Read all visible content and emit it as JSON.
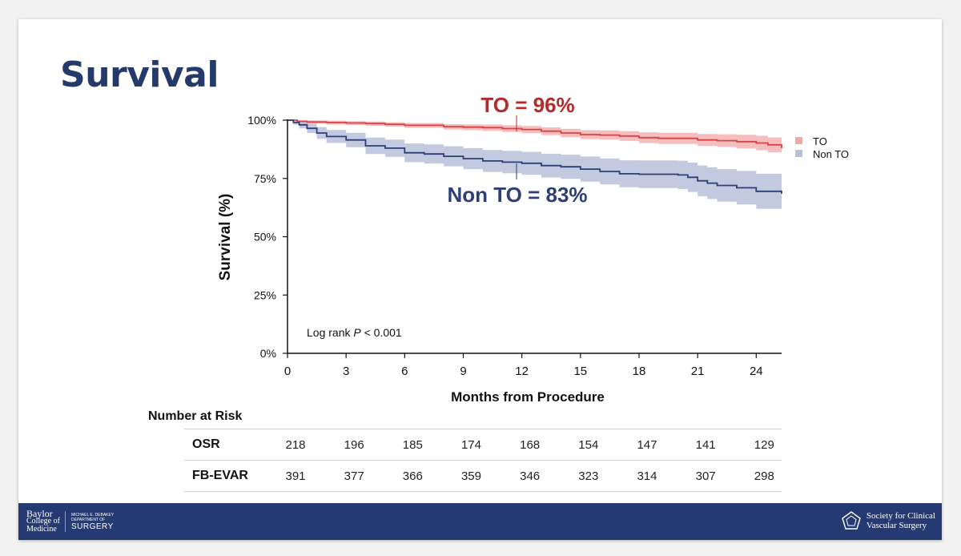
{
  "slide": {
    "title": "Survival"
  },
  "chart_data": {
    "type": "line",
    "title": "",
    "xlabel": "Months from Procedure",
    "ylabel": "Survival (%)",
    "xlim": [
      0,
      25.3
    ],
    "ylim": [
      0,
      100
    ],
    "x_ticks": [
      0,
      3,
      6,
      9,
      12,
      15,
      18,
      21,
      24
    ],
    "y_ticks": [
      0,
      25,
      50,
      75,
      100
    ],
    "y_tick_labels": [
      "0%",
      "25%",
      "50%",
      "75%",
      "100%"
    ],
    "legend": {
      "position": "top-right",
      "entries": [
        "TO",
        "Non TO"
      ]
    },
    "annotations": {
      "to_label": "TO = 96%",
      "non_to_label": "Non TO = 83%",
      "log_rank": {
        "prefix": "Log rank ",
        "italic": "P",
        "suffix": " < 0.001"
      }
    },
    "series": [
      {
        "name": "TO",
        "color": "#d64545",
        "band_color": "#f3b1b1",
        "x": [
          0,
          0.5,
          1,
          2,
          3,
          4,
          5,
          6,
          8,
          9,
          10,
          11,
          12,
          13,
          14,
          15,
          16,
          17,
          18,
          19,
          20,
          21,
          22,
          23,
          24,
          24.6,
          25.3
        ],
        "y": [
          100,
          99.5,
          99.2,
          99,
          98.8,
          98.6,
          98.2,
          97.8,
          97.2,
          97,
          96.8,
          96.4,
          96,
          95.3,
          94.5,
          93.8,
          93.6,
          93.2,
          92.5,
          92.2,
          92.2,
          91.5,
          91.2,
          90.8,
          90.2,
          89.4,
          88
        ],
        "upper": [
          100,
          100,
          99.9,
          99.8,
          99.6,
          99.4,
          99.1,
          98.8,
          98.3,
          98.2,
          98.1,
          97.8,
          97.5,
          96.9,
          96.3,
          95.7,
          95.6,
          95.3,
          94.8,
          94.6,
          94.6,
          94.1,
          93.9,
          93.7,
          93.3,
          92.6,
          91.5
        ],
        "lower": [
          100,
          99,
          98.5,
          98.1,
          97.9,
          97.6,
          97.2,
          96.7,
          96,
          95.7,
          95.4,
          94.9,
          94.4,
          93.6,
          92.7,
          91.9,
          91.6,
          91.1,
          90.2,
          89.8,
          89.8,
          88.9,
          88.5,
          87.9,
          87.1,
          86.2,
          84.5
        ]
      },
      {
        "name": "Non TO",
        "color": "#2e3f77",
        "band_color": "#b8c0d8",
        "x": [
          0,
          0.3,
          0.6,
          1,
          1.5,
          2,
          3,
          4,
          5,
          6,
          7,
          8,
          9,
          10,
          11,
          12,
          13,
          14,
          15,
          16,
          17,
          18,
          19,
          20,
          20.5,
          21,
          21.5,
          22,
          23,
          24,
          25.3
        ],
        "y": [
          100,
          99,
          98,
          96.5,
          94.5,
          93,
          91.5,
          89,
          88,
          86,
          85.5,
          84.5,
          83.5,
          82.5,
          82,
          81.5,
          80.5,
          80,
          79,
          78,
          77,
          76.8,
          76.8,
          76.5,
          75.5,
          74,
          73,
          72,
          71,
          69.5,
          68.5
        ],
        "upper": [
          100,
          100,
          99.5,
          98.5,
          97,
          95.8,
          94.6,
          92.5,
          91.7,
          90,
          89.6,
          88.8,
          88,
          87.2,
          86.8,
          86.4,
          85.6,
          85.2,
          84.4,
          83.6,
          82.8,
          82.7,
          82.7,
          82.6,
          81.8,
          80.6,
          79.8,
          79,
          78.2,
          77,
          76
        ],
        "lower": [
          100,
          98,
          96.5,
          94.5,
          92,
          90.2,
          88.4,
          85.5,
          84.3,
          82,
          81.4,
          80.2,
          79,
          77.8,
          77.2,
          76.6,
          75.4,
          74.8,
          73.6,
          72.4,
          71.2,
          70.9,
          70.9,
          70.4,
          69.2,
          67.4,
          66.2,
          65,
          63.8,
          62,
          61
        ]
      }
    ]
  },
  "risk_table": {
    "title": "Number at Risk",
    "rows": [
      {
        "label": "OSR",
        "values": [
          218,
          196,
          185,
          174,
          168,
          154,
          147,
          141,
          129
        ]
      },
      {
        "label": "FB-EVAR",
        "values": [
          391,
          377,
          366,
          359,
          346,
          323,
          314,
          307,
          298
        ]
      }
    ]
  },
  "footer": {
    "baylor": {
      "line1": "Baylor",
      "line2": "College of",
      "line3": "Medicine"
    },
    "department": {
      "line1": "MICHAEL E. DEBAKEY",
      "line2": "DEPARTMENT OF",
      "line3": "SURGERY"
    },
    "society": {
      "line1": "Society for Clinical",
      "line2": "Vascular Surgery"
    },
    "colors": {
      "footer_bg": "#253a72",
      "title": "#243a6b"
    }
  }
}
